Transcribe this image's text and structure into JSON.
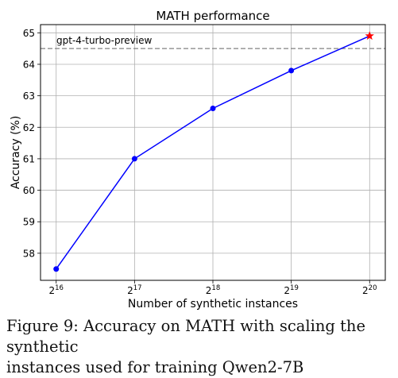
{
  "chart_data": {
    "type": "line",
    "title": "MATH performance",
    "xlabel": "Number of synthetic instances",
    "ylabel": "Accuracy (%)",
    "x_scale": "log2",
    "x": [
      65536,
      131072,
      262144,
      524288,
      1048576
    ],
    "x_tick_labels": [
      {
        "base": "2",
        "exp": "16"
      },
      {
        "base": "2",
        "exp": "17"
      },
      {
        "base": "2",
        "exp": "18"
      },
      {
        "base": "2",
        "exp": "19"
      },
      {
        "base": "2",
        "exp": "20"
      }
    ],
    "series": [
      {
        "values": [
          57.5,
          61.0,
          62.6,
          63.8,
          64.9
        ],
        "color": "#0000ff",
        "marker": "circle",
        "last_marker": "star",
        "last_marker_color": "#ff0000"
      }
    ],
    "reference_line": {
      "label": "gpt-4-turbo-preview",
      "y": 64.5,
      "color": "#808080",
      "style": "dashed"
    },
    "y_ticks": [
      58,
      59,
      60,
      61,
      62,
      63,
      64,
      65
    ],
    "ylim": [
      57.14,
      65.26
    ],
    "grid": true
  },
  "caption": {
    "line1": "Figure 9: Accuracy on MATH with scaling the synthetic",
    "line2": "instances used for training Qwen2-7B"
  }
}
